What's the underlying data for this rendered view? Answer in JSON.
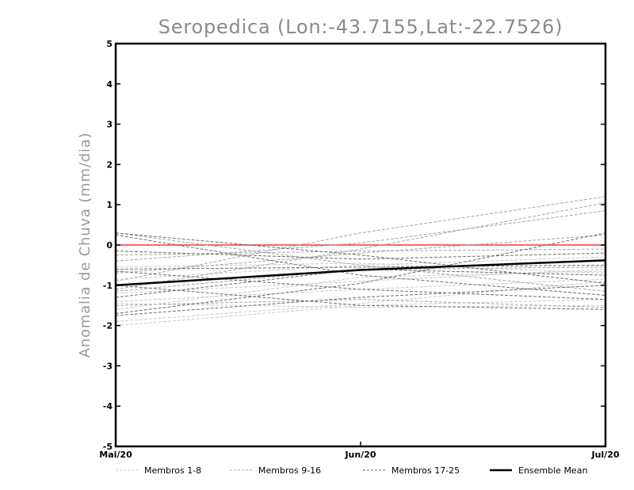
{
  "chart_data": {
    "type": "line",
    "title": "Seropedica (Lon:-43.7155,Lat:-22.7526)",
    "xlabel": "",
    "ylabel": "Anomalia de Chuva (mm/dia)",
    "categories": [
      "Mai/20",
      "Jun/20",
      "Jul/20"
    ],
    "ylim": [
      -5,
      5
    ],
    "yticks": [
      -5,
      -4,
      -3,
      -2,
      -1,
      0,
      1,
      2,
      3,
      4,
      5
    ],
    "grid": false,
    "legend_position": "bottom",
    "reference_line": {
      "value": 0,
      "color": "#f03c3c"
    },
    "groups": [
      {
        "name": "Membros 1-8",
        "color": "#c9c9c9",
        "style": "dashed",
        "width": 1
      },
      {
        "name": "Membros 9-16",
        "color": "#a5a5a5",
        "style": "dashed",
        "width": 1
      },
      {
        "name": "Membros 17-25",
        "color": "#6e6e6e",
        "style": "dashed",
        "width": 1
      },
      {
        "name": "Ensemble Mean",
        "color": "#000000",
        "style": "solid",
        "width": 2.5
      }
    ],
    "series": [
      {
        "group": 0,
        "values": [
          -2.0,
          -1.5,
          -1.35
        ]
      },
      {
        "group": 0,
        "values": [
          -1.9,
          -1.45,
          -0.9
        ]
      },
      {
        "group": 0,
        "values": [
          -1.6,
          -0.8,
          -0.65
        ]
      },
      {
        "group": 0,
        "values": [
          -1.4,
          -1.1,
          -0.85
        ]
      },
      {
        "group": 0,
        "values": [
          -1.2,
          -0.9,
          -0.6
        ]
      },
      {
        "group": 0,
        "values": [
          -0.85,
          -0.5,
          -0.3
        ]
      },
      {
        "group": 0,
        "values": [
          -0.55,
          -0.45,
          -0.7
        ]
      },
      {
        "group": 0,
        "values": [
          -1.45,
          -1.55,
          -1.5
        ]
      },
      {
        "group": 1,
        "values": [
          -0.9,
          0.3,
          1.2
        ]
      },
      {
        "group": 1,
        "values": [
          -1.1,
          -0.1,
          1.05
        ]
      },
      {
        "group": 1,
        "values": [
          -0.4,
          0.05,
          0.85
        ]
      },
      {
        "group": 1,
        "values": [
          -0.7,
          -0.2,
          0.25
        ]
      },
      {
        "group": 1,
        "values": [
          0.3,
          -0.5,
          -1.15
        ]
      },
      {
        "group": 1,
        "values": [
          -1.5,
          -1.35,
          -1.55
        ]
      },
      {
        "group": 1,
        "values": [
          -0.25,
          -0.15,
          -0.1
        ]
      },
      {
        "group": 1,
        "values": [
          -1.15,
          -0.6,
          -0.55
        ]
      },
      {
        "group": 2,
        "values": [
          0.3,
          -0.25,
          -0.95
        ]
      },
      {
        "group": 2,
        "values": [
          0.25,
          -0.75,
          -1.25
        ]
      },
      {
        "group": 2,
        "values": [
          -1.75,
          -1.3,
          -1.0
        ]
      },
      {
        "group": 2,
        "values": [
          -1.7,
          -0.95,
          0.3
        ]
      },
      {
        "group": 2,
        "values": [
          -1.0,
          -1.5,
          -1.6
        ]
      },
      {
        "group": 2,
        "values": [
          -0.6,
          -0.55,
          -0.5
        ]
      },
      {
        "group": 2,
        "values": [
          -0.15,
          -0.35,
          -0.2
        ]
      },
      {
        "group": 2,
        "values": [
          -0.65,
          -1.1,
          -1.35
        ]
      },
      {
        "group": 2,
        "values": [
          -1.3,
          -0.6,
          -0.75
        ]
      },
      {
        "group": 3,
        "values": [
          -1.0,
          -0.62,
          -0.38
        ]
      }
    ]
  }
}
